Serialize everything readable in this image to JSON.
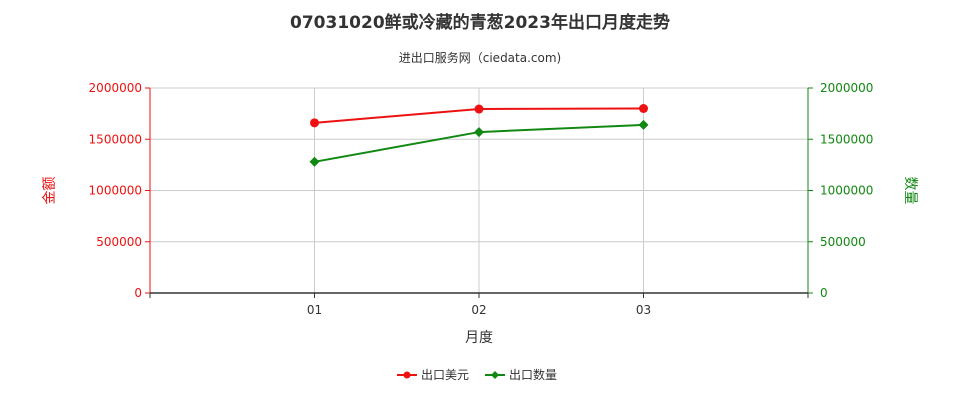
{
  "title": "07031020鲜或冷藏的青葱2023年出口月度走势",
  "subtitle": "进出口服务网（ciedata.com)",
  "colors": {
    "amount": "#ee1111",
    "quantity": "#118811",
    "grid": "#cccccc",
    "axis": "#333333",
    "text": "#333333"
  },
  "chart_data": {
    "type": "line",
    "title": "07031020鲜或冷藏的青葱2023年出口月度走势",
    "subtitle": "进出口服务网（ciedata.com)",
    "xlabel": "月度",
    "ylabel_left": "金额",
    "ylabel_right": "数量",
    "categories": [
      "01",
      "02",
      "03"
    ],
    "ylim_left": [
      0,
      2000000
    ],
    "ylim_right": [
      0,
      2000000
    ],
    "yticks_left": [
      "0",
      "500000",
      "1000000",
      "1500000",
      "2000000"
    ],
    "yticks_right": [
      "0",
      "500000",
      "1000000",
      "1500000",
      "2000000"
    ],
    "grid": true,
    "legend_position": "bottom",
    "series": [
      {
        "name": "出口美元",
        "axis": "left",
        "marker": "circle",
        "values": [
          1660000,
          1795000,
          1800000
        ]
      },
      {
        "name": "出口数量",
        "axis": "right",
        "marker": "diamond",
        "values": [
          1280000,
          1570000,
          1640000
        ]
      }
    ]
  }
}
